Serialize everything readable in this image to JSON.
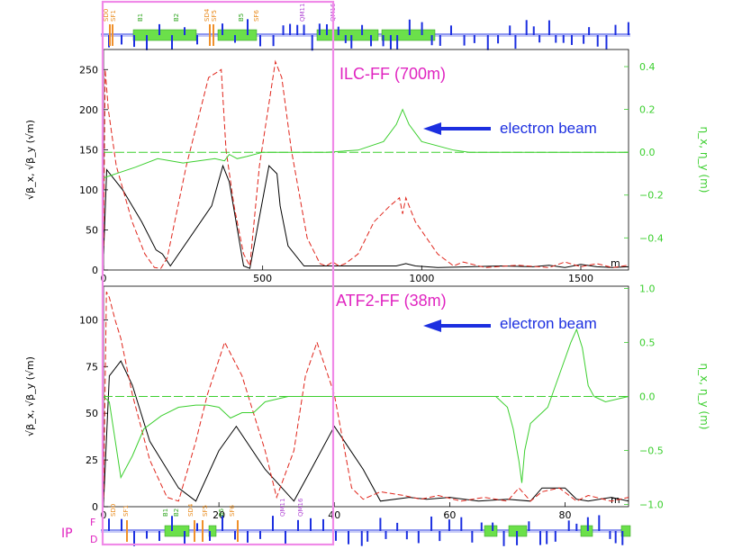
{
  "colors": {
    "beta_x": "#000000",
    "beta_y": "#e0251b",
    "eta": "#3ccf2f",
    "accent": "#e024c0",
    "arrow": "#1c2fe0",
    "highlight": "#f08ae8",
    "bend_green": "#6be04a",
    "quad_blue": "#1c2fe0"
  },
  "lattice_top": {
    "labels": [
      {
        "text": "SD0",
        "color": "orange"
      },
      {
        "text": "SF1",
        "color": "orange"
      },
      {
        "text": "B1",
        "color": "green"
      },
      {
        "text": "B2",
        "color": "green"
      },
      {
        "text": "SD4",
        "color": "orange"
      },
      {
        "text": "SF5",
        "color": "orange"
      },
      {
        "text": "B5",
        "color": "green"
      },
      {
        "text": "SF6",
        "color": "orange"
      },
      {
        "text": "QM11",
        "color": "purple"
      },
      {
        "text": "QM16",
        "color": "purple"
      }
    ]
  },
  "lattice_bottom": {
    "ip_label": "IP",
    "f_label": "F",
    "d_label": "D",
    "labels": [
      {
        "text": "SD0",
        "color": "orange"
      },
      {
        "text": "SF1",
        "color": "orange"
      },
      {
        "text": "B1",
        "color": "green"
      },
      {
        "text": "B2",
        "color": "green"
      },
      {
        "text": "SD4",
        "color": "orange"
      },
      {
        "text": "SF5",
        "color": "orange"
      },
      {
        "text": "B5",
        "color": "green"
      },
      {
        "text": "SF6",
        "color": "orange"
      },
      {
        "text": "QM11",
        "color": "purple"
      },
      {
        "text": "QM16",
        "color": "purple"
      }
    ]
  },
  "chart_data": [
    {
      "type": "line",
      "title": "ILC-FF (700m)",
      "annotation": "electron beam",
      "xunit": "m",
      "ylabel": "√β_x, √β_y (√m)",
      "y2label": "η_x, η_y (m)",
      "xlim": [
        0,
        1650
      ],
      "ylim": [
        0,
        275
      ],
      "y2lim": [
        -0.55,
        0.48
      ],
      "xticks": [
        0,
        500,
        1000,
        1500
      ],
      "yticks": [
        0,
        50,
        100,
        150,
        200,
        250
      ],
      "y2ticks": [
        0.4,
        0.2,
        0.0,
        -0.2,
        -0.4
      ],
      "y2ticklabels": [
        "0.4",
        "0.2",
        "0.0",
        "−0.2",
        "−0.4"
      ],
      "series": [
        {
          "key": "beta_x",
          "style": "solid",
          "x": [
            0,
            10,
            60,
            120,
            165,
            185,
            210,
            340,
            375,
            395,
            440,
            460,
            520,
            545,
            555,
            580,
            630,
            690,
            750,
            800,
            860,
            920,
            950,
            980,
            1050,
            1150,
            1250,
            1350,
            1400,
            1450,
            1500,
            1550,
            1600,
            1650
          ],
          "y": [
            20,
            125,
            100,
            60,
            25,
            20,
            5,
            80,
            130,
            110,
            5,
            2,
            130,
            120,
            80,
            30,
            5,
            5,
            5,
            5,
            5,
            5,
            8,
            5,
            3,
            4,
            5,
            4,
            6,
            3,
            7,
            4,
            3,
            4
          ]
        },
        {
          "key": "beta_y",
          "style": "dashed",
          "x": [
            0,
            5,
            15,
            40,
            90,
            130,
            160,
            180,
            200,
            260,
            330,
            370,
            385,
            410,
            440,
            460,
            490,
            540,
            560,
            590,
            640,
            680,
            700,
            720,
            740,
            760,
            800,
            850,
            900,
            930,
            940,
            950,
            980,
            1050,
            1100,
            1130,
            1200,
            1300,
            1400,
            1450,
            1500,
            1550,
            1600,
            1650
          ],
          "y": [
            30,
            250,
            200,
            130,
            60,
            20,
            3,
            2,
            15,
            130,
            240,
            250,
            150,
            80,
            20,
            5,
            130,
            260,
            240,
            150,
            40,
            8,
            5,
            10,
            5,
            8,
            20,
            60,
            80,
            90,
            70,
            90,
            60,
            20,
            5,
            10,
            3,
            6,
            3,
            10,
            4,
            8,
            3,
            6
          ]
        },
        {
          "key": "eta",
          "style": "solid",
          "x": [
            0,
            100,
            170,
            250,
            350,
            380,
            395,
            420,
            450,
            500,
            550,
            600,
            700,
            800,
            880,
            920,
            940,
            960,
            1000,
            1100,
            1150,
            1650
          ],
          "y": [
            -0.12,
            -0.07,
            -0.03,
            -0.05,
            -0.03,
            -0.04,
            -0.01,
            -0.03,
            -0.02,
            0.0,
            0.0,
            0.0,
            0.0,
            0.01,
            0.05,
            0.13,
            0.2,
            0.13,
            0.05,
            0.01,
            0.0,
            0.0
          ]
        },
        {
          "key": "eta",
          "style": "dashdash",
          "x": [
            0,
            1650
          ],
          "y": [
            0.0,
            0.0
          ]
        }
      ]
    },
    {
      "type": "line",
      "title": "ATF2-FF (38m)",
      "annotation": "electron beam",
      "xunit": "m",
      "ylabel": "√β_x, √β_y (√m)",
      "y2label": "η_x, η_y (m)",
      "xlim": [
        0,
        91
      ],
      "ylim": [
        0,
        118
      ],
      "y2lim": [
        -1.02,
        1.02
      ],
      "xticks": [
        0,
        20,
        40,
        60,
        80
      ],
      "yticks": [
        0,
        25,
        50,
        75,
        100
      ],
      "y2ticks": [
        1.0,
        0.5,
        0.0,
        -0.5,
        -1.0
      ],
      "y2ticklabels": [
        "1.0",
        "0.5",
        "0.0",
        "−0.5",
        "−1.0"
      ],
      "series": [
        {
          "key": "beta_x",
          "style": "solid",
          "x": [
            0,
            1,
            3,
            5,
            8,
            13,
            16,
            20,
            23,
            28,
            33,
            36,
            40,
            45,
            48,
            53,
            56,
            60,
            65,
            70,
            74,
            76,
            80,
            82,
            84,
            88,
            91
          ],
          "y": [
            2,
            70,
            78,
            65,
            35,
            10,
            3,
            30,
            43,
            20,
            3,
            20,
            43,
            20,
            3,
            5,
            4,
            5,
            3,
            4,
            3,
            10,
            10,
            4,
            3,
            5,
            3
          ]
        },
        {
          "key": "beta_y",
          "style": "dashed",
          "x": [
            0,
            0.5,
            1,
            2,
            3,
            5,
            8,
            11,
            13,
            16,
            18,
            21,
            24,
            28,
            30,
            33,
            35,
            37,
            40,
            43,
            45,
            48,
            52,
            55,
            58,
            62,
            66,
            70,
            72,
            74,
            76,
            79,
            82,
            84,
            88,
            91
          ],
          "y": [
            5,
            115,
            112,
            100,
            90,
            60,
            25,
            5,
            3,
            35,
            60,
            88,
            70,
            30,
            5,
            30,
            70,
            88,
            60,
            10,
            4,
            8,
            6,
            4,
            6,
            3,
            5,
            3,
            10,
            3,
            8,
            10,
            3,
            6,
            3,
            5
          ]
        },
        {
          "key": "eta",
          "style": "solid",
          "x": [
            0,
            1,
            3,
            5,
            7,
            10,
            13,
            16,
            18,
            20,
            22,
            24,
            26,
            28,
            32,
            40,
            50,
            60,
            68,
            70,
            71,
            72,
            72.5,
            73,
            74,
            75,
            76,
            77,
            78,
            79,
            80,
            81,
            82,
            83,
            84,
            85,
            87,
            91
          ],
          "y": [
            0.0,
            -0.05,
            -0.75,
            -0.55,
            -0.3,
            -0.18,
            -0.1,
            -0.08,
            -0.08,
            -0.1,
            -0.2,
            -0.15,
            -0.15,
            -0.05,
            0.0,
            0.0,
            0.0,
            0.0,
            0.0,
            -0.1,
            -0.3,
            -0.6,
            -0.8,
            -0.5,
            -0.25,
            -0.2,
            -0.15,
            -0.1,
            0.05,
            0.2,
            0.35,
            0.5,
            0.62,
            0.45,
            0.1,
            0.0,
            -0.05,
            0.0
          ]
        },
        {
          "key": "eta",
          "style": "dashdash",
          "x": [
            0,
            91
          ],
          "y": [
            0.0,
            0.0
          ]
        }
      ]
    }
  ]
}
